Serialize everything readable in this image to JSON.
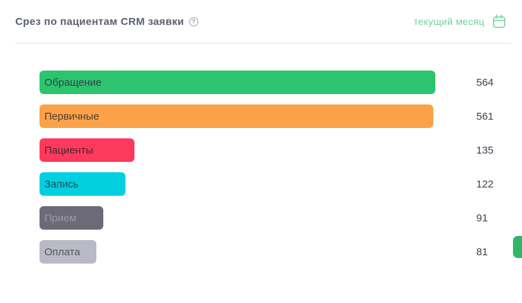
{
  "header": {
    "title": "Срез по пациентам CRM заявки",
    "help_icon": "question-circle-icon",
    "period": {
      "label": "текущий месяц",
      "icon": "calendar-icon",
      "text_color": "#72d19b",
      "icon_color": "#7fd9a6"
    }
  },
  "chart_data": {
    "type": "bar",
    "orientation": "horizontal",
    "title": "Срез по пациентам CRM заявки",
    "categories": [
      "Обращение",
      "Первичные",
      "Пациенты",
      "Запись",
      "Прием",
      "Оплата"
    ],
    "values": [
      564,
      561,
      135,
      122,
      91,
      81
    ],
    "bar_colors": [
      "#2dc46f",
      "#fba147",
      "#fd3a5c",
      "#02cfe0",
      "#6d6a77",
      "#b9bac5"
    ],
    "label_colors": [
      "#353f47",
      "#4c4136",
      "#4f232f",
      "#12505a",
      "#9c99a7",
      "#54555e"
    ],
    "value_color": "#3b434e",
    "xlim": [
      0,
      564
    ],
    "grid": false,
    "legend": "none",
    "value_labels": "right of bars"
  },
  "side_tab": {
    "color": "#33b469",
    "name": "edge-tab"
  }
}
